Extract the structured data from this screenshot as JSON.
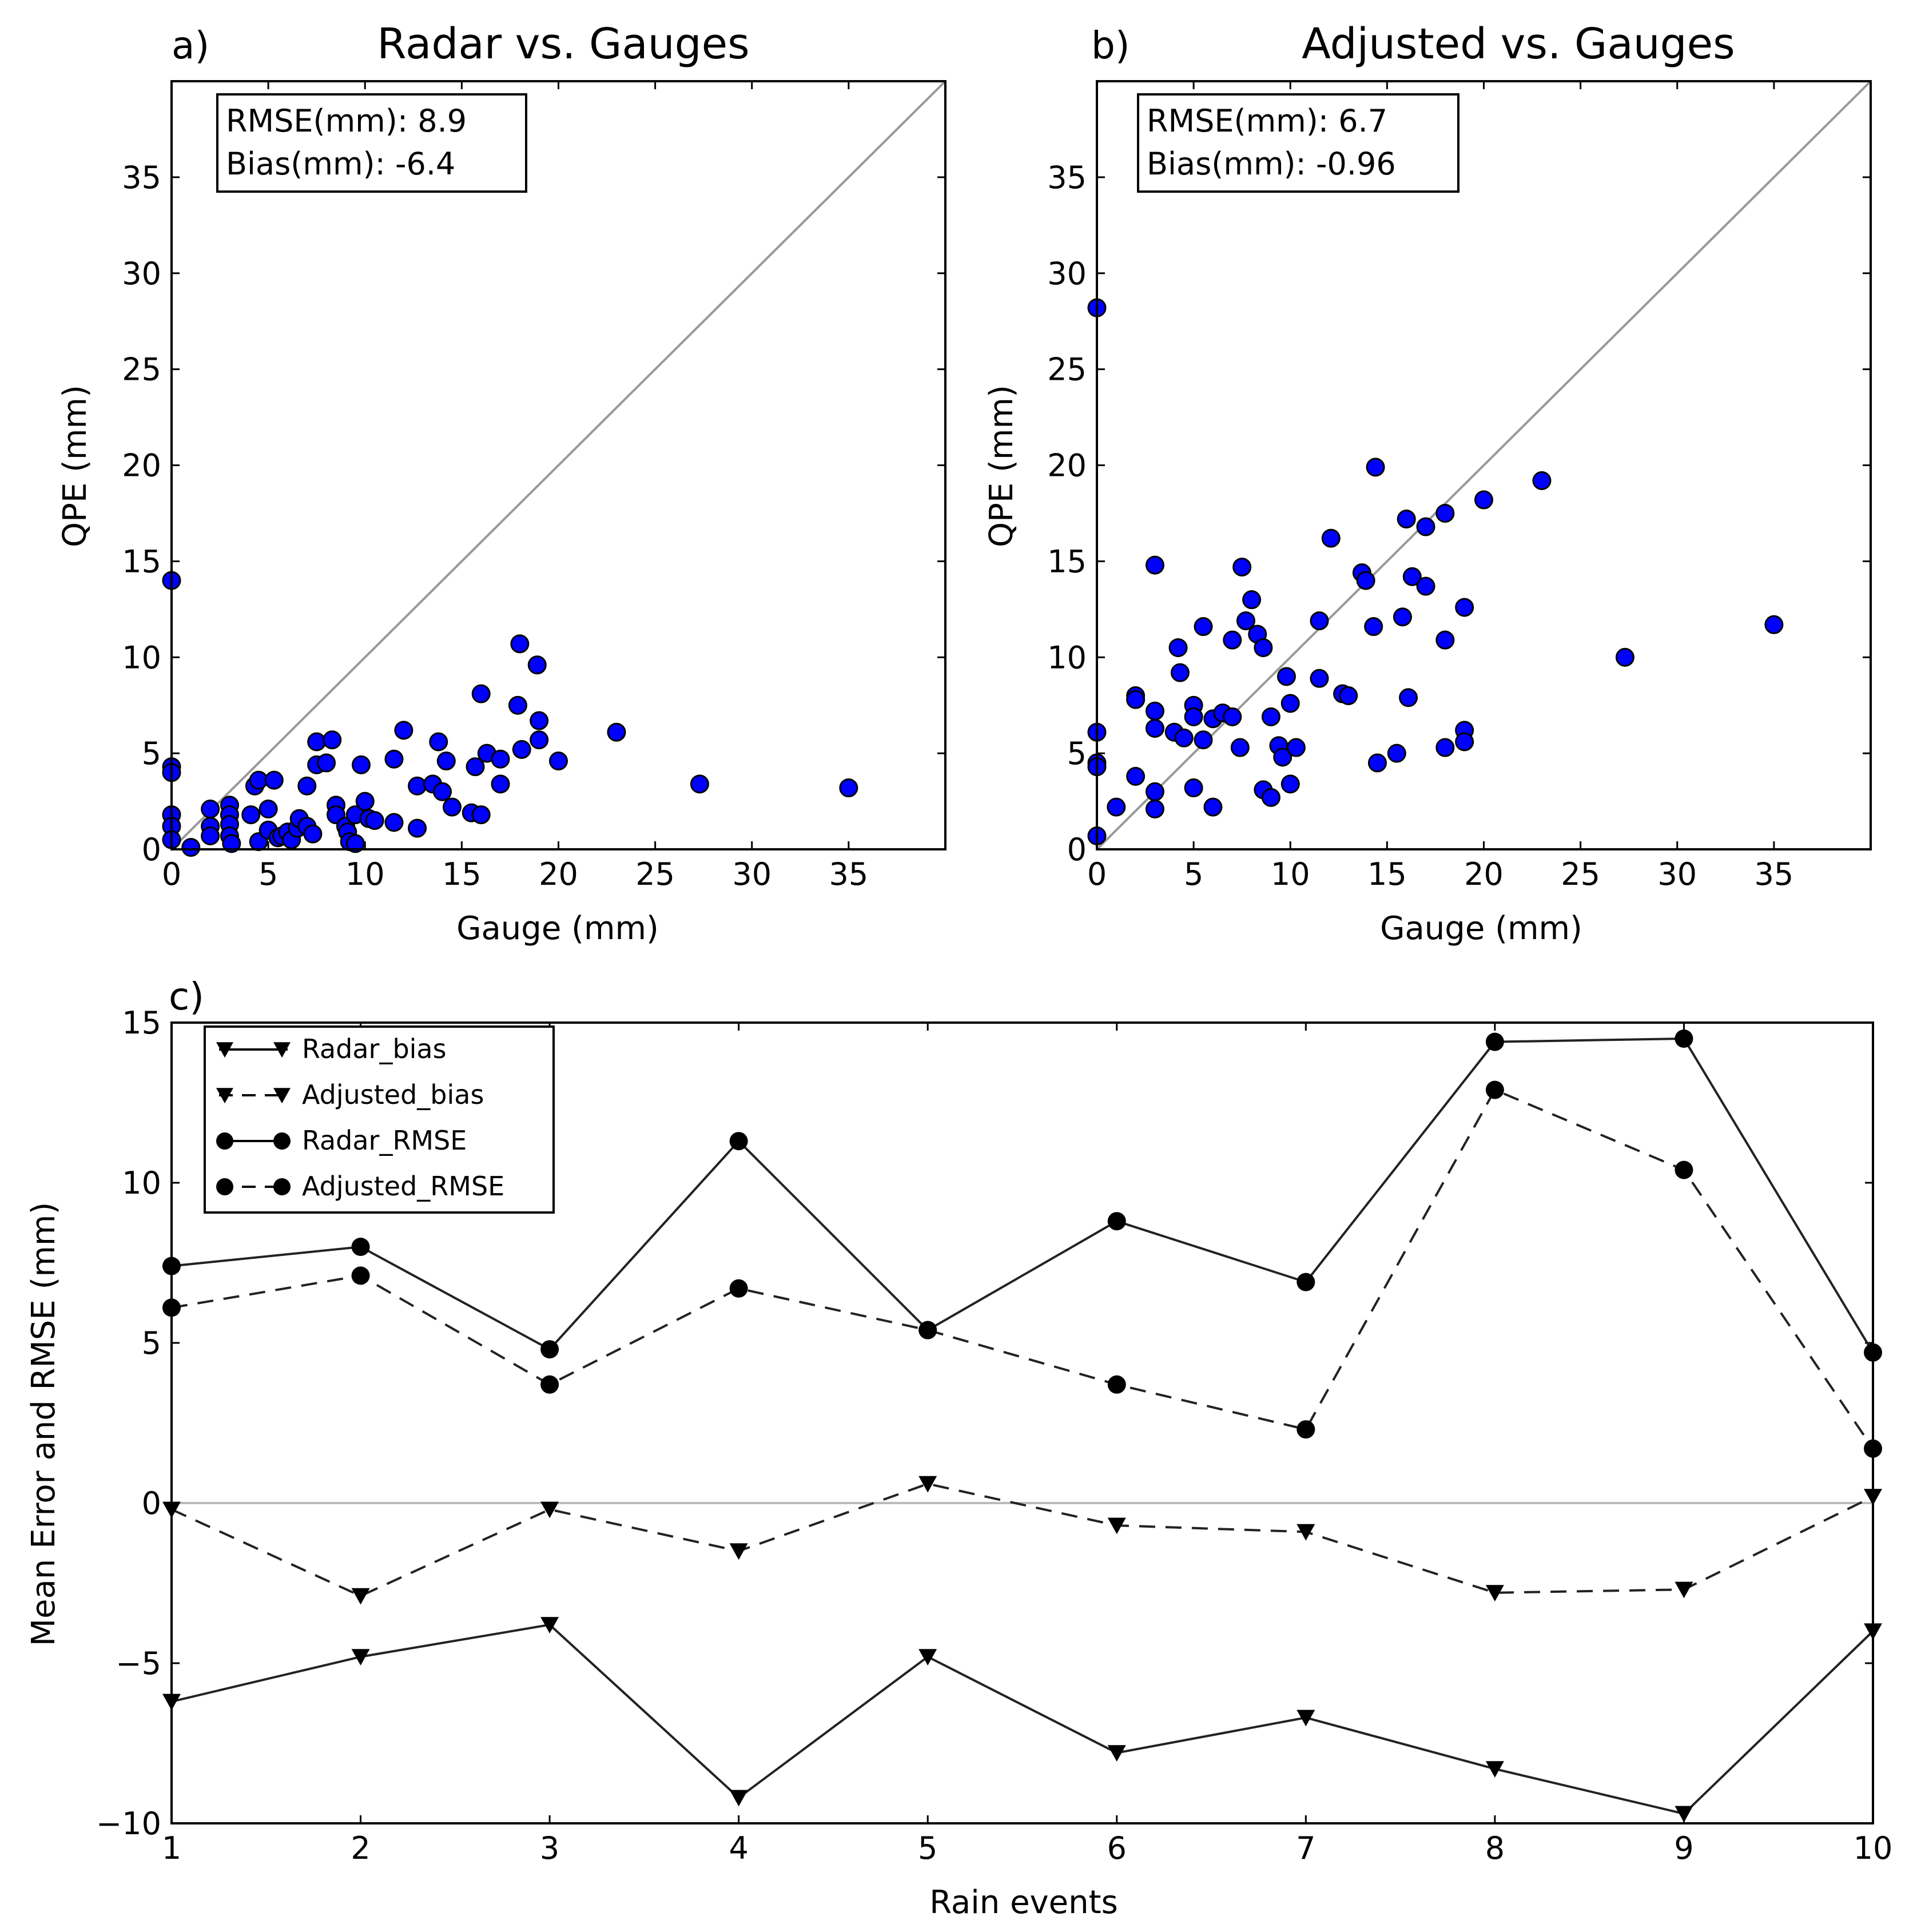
{
  "chart_data": [
    {
      "id": "a",
      "type": "scatter",
      "panel_label": "a)",
      "title": "Radar vs. Gauges",
      "xlabel": "Gauge (mm)",
      "ylabel": "QPE (mm)",
      "xlim": [
        0,
        40
      ],
      "ylim": [
        0,
        40
      ],
      "xticks": [
        0,
        5,
        10,
        15,
        20,
        25,
        30,
        35
      ],
      "yticks": [
        0,
        5,
        10,
        15,
        20,
        25,
        30,
        35
      ],
      "stats": {
        "rmse": "RMSE(mm): 8.9",
        "bias": "Bias(mm): -6.4"
      },
      "point_color": "#0000ff",
      "line_color": "#999999",
      "points": [
        [
          0,
          14
        ],
        [
          0,
          4.3
        ],
        [
          0,
          4
        ],
        [
          0,
          1.8
        ],
        [
          0,
          1.2
        ],
        [
          0,
          0.5
        ],
        [
          1,
          0.1
        ],
        [
          2,
          2.1
        ],
        [
          2,
          1.2
        ],
        [
          2,
          0.7
        ],
        [
          3,
          2.3
        ],
        [
          3,
          1.8
        ],
        [
          3,
          1.3
        ],
        [
          3,
          0.7
        ],
        [
          3.1,
          0.3
        ],
        [
          4.1,
          1.8
        ],
        [
          4.3,
          3.3
        ],
        [
          4.5,
          3.6
        ],
        [
          4.5,
          0.4
        ],
        [
          5,
          1
        ],
        [
          5,
          2.1
        ],
        [
          5.3,
          3.6
        ],
        [
          5.5,
          0.6
        ],
        [
          5.7,
          0.7
        ],
        [
          6,
          0.9
        ],
        [
          6.2,
          0.5
        ],
        [
          6.5,
          1.1
        ],
        [
          6.6,
          1.6
        ],
        [
          7,
          1.2
        ],
        [
          7,
          3.3
        ],
        [
          7.3,
          0.8
        ],
        [
          7.5,
          4.4
        ],
        [
          7.5,
          5.6
        ],
        [
          8,
          4.5
        ],
        [
          8.3,
          5.7
        ],
        [
          8.5,
          2.3
        ],
        [
          8.5,
          1.8
        ],
        [
          9,
          1.2
        ],
        [
          9.1,
          0.9
        ],
        [
          9.2,
          0.4
        ],
        [
          9.5,
          0.3
        ],
        [
          9.5,
          1.8
        ],
        [
          9.8,
          4.4
        ],
        [
          10,
          2.5
        ],
        [
          10.2,
          1.6
        ],
        [
          10.5,
          1.5
        ],
        [
          11.5,
          1.4
        ],
        [
          11.5,
          4.7
        ],
        [
          12,
          6.2
        ],
        [
          12.7,
          1.1
        ],
        [
          12.7,
          3.3
        ],
        [
          13.5,
          3.4
        ],
        [
          13.8,
          5.6
        ],
        [
          14,
          3
        ],
        [
          14.2,
          4.6
        ],
        [
          14.5,
          2.2
        ],
        [
          15.5,
          1.9
        ],
        [
          15.7,
          4.3
        ],
        [
          16,
          8.1
        ],
        [
          16,
          1.8
        ],
        [
          16.3,
          5
        ],
        [
          17,
          3.4
        ],
        [
          17,
          4.7
        ],
        [
          18,
          10.7
        ],
        [
          17.9,
          7.5
        ],
        [
          18.1,
          5.2
        ],
        [
          18.9,
          9.6
        ],
        [
          19,
          6.7
        ],
        [
          19,
          5.7
        ],
        [
          20,
          4.6
        ],
        [
          23,
          6.1
        ],
        [
          27.3,
          3.4
        ],
        [
          35,
          3.2
        ]
      ]
    },
    {
      "id": "b",
      "type": "scatter",
      "panel_label": "b)",
      "title": "Adjusted vs. Gauges",
      "xlabel": "Gauge (mm)",
      "ylabel": "QPE (mm)",
      "xlim": [
        0,
        40
      ],
      "ylim": [
        0,
        40
      ],
      "xticks": [
        0,
        5,
        10,
        15,
        20,
        25,
        30,
        35
      ],
      "yticks": [
        0,
        5,
        10,
        15,
        20,
        25,
        30,
        35
      ],
      "stats": {
        "rmse": "RMSE(mm): 6.7",
        "bias": "Bias(mm): -0.96"
      },
      "point_color": "#0000ff",
      "line_color": "#999999",
      "points": [
        [
          0,
          28.2
        ],
        [
          0,
          6.1
        ],
        [
          0,
          4.5
        ],
        [
          0,
          4.3
        ],
        [
          0,
          0.7
        ],
        [
          1,
          2.2
        ],
        [
          2,
          8
        ],
        [
          2,
          7.8
        ],
        [
          2,
          3.8
        ],
        [
          3,
          14.8
        ],
        [
          3,
          7.2
        ],
        [
          3,
          6.3
        ],
        [
          3,
          3
        ],
        [
          3,
          2.1
        ],
        [
          4,
          6.1
        ],
        [
          4.2,
          10.5
        ],
        [
          4.3,
          9.2
        ],
        [
          4.5,
          5.8
        ],
        [
          5,
          7.5
        ],
        [
          5,
          6.9
        ],
        [
          5,
          3.2
        ],
        [
          5.5,
          11.6
        ],
        [
          5.5,
          5.7
        ],
        [
          6,
          6.8
        ],
        [
          6,
          2.2
        ],
        [
          6.5,
          7.1
        ],
        [
          7,
          6.9
        ],
        [
          7,
          10.9
        ],
        [
          7.4,
          5.3
        ],
        [
          7.5,
          14.7
        ],
        [
          7.7,
          11.9
        ],
        [
          8,
          13
        ],
        [
          8.3,
          11.2
        ],
        [
          8.6,
          10.5
        ],
        [
          8.6,
          3.1
        ],
        [
          9,
          2.7
        ],
        [
          9,
          6.9
        ],
        [
          9.4,
          5.4
        ],
        [
          9.6,
          4.8
        ],
        [
          9.8,
          9
        ],
        [
          10,
          7.6
        ],
        [
          10,
          3.4
        ],
        [
          10.3,
          5.3
        ],
        [
          11.5,
          11.9
        ],
        [
          11.5,
          8.9
        ],
        [
          12.1,
          16.2
        ],
        [
          12.7,
          8.1
        ],
        [
          13,
          8
        ],
        [
          13.7,
          14.4
        ],
        [
          13.9,
          14
        ],
        [
          14.3,
          11.6
        ],
        [
          14.5,
          4.5
        ],
        [
          14.4,
          19.9
        ],
        [
          15.5,
          5
        ],
        [
          15.8,
          12.1
        ],
        [
          16,
          17.2
        ],
        [
          16.1,
          7.9
        ],
        [
          16.3,
          14.2
        ],
        [
          17,
          16.8
        ],
        [
          17,
          13.7
        ],
        [
          18,
          17.5
        ],
        [
          18,
          10.9
        ],
        [
          18,
          5.3
        ],
        [
          19,
          12.6
        ],
        [
          19,
          6.2
        ],
        [
          19,
          5.6
        ],
        [
          20,
          18.2
        ],
        [
          23,
          19.2
        ],
        [
          27.3,
          10
        ],
        [
          35,
          11.7
        ]
      ]
    },
    {
      "id": "c",
      "type": "line",
      "panel_label": "c)",
      "title": "",
      "xlabel": "Rain events",
      "ylabel": "Mean Error and RMSE (mm)",
      "xlim": [
        1,
        10
      ],
      "ylim": [
        -10,
        15
      ],
      "xticks": [
        1,
        2,
        3,
        4,
        5,
        6,
        7,
        8,
        9,
        10
      ],
      "yticks": [
        -10,
        -5,
        0,
        5,
        10,
        15
      ],
      "ytick_labels": [
        "−10",
        "−5",
        "0",
        "5",
        "10",
        "15"
      ],
      "legend_position": "top-left",
      "x": [
        1,
        2,
        3,
        4,
        5,
        6,
        7,
        8,
        9,
        10
      ],
      "zero_line_color": "#bbbbbb",
      "series": [
        {
          "name": "Radar_bias",
          "marker": "triangle-down",
          "linestyle": "solid",
          "values": [
            -6.2,
            -4.8,
            -3.8,
            -9.2,
            -4.8,
            -7.8,
            -6.7,
            -8.3,
            -9.7,
            -4.0
          ]
        },
        {
          "name": "Adjusted_bias",
          "marker": "triangle-down",
          "linestyle": "dashed",
          "values": [
            -0.2,
            -2.9,
            -0.2,
            -1.5,
            0.6,
            -0.7,
            -0.9,
            -2.8,
            -2.7,
            0.2
          ]
        },
        {
          "name": "Radar_RMSE",
          "marker": "circle",
          "linestyle": "solid",
          "values": [
            7.4,
            8.0,
            4.8,
            11.3,
            5.4,
            8.8,
            6.9,
            14.4,
            14.5,
            4.7
          ]
        },
        {
          "name": "Adjusted_RMSE",
          "marker": "circle",
          "linestyle": "dashed",
          "values": [
            6.1,
            7.1,
            3.7,
            6.7,
            5.4,
            3.7,
            2.3,
            12.9,
            10.4,
            1.7
          ]
        }
      ]
    }
  ]
}
